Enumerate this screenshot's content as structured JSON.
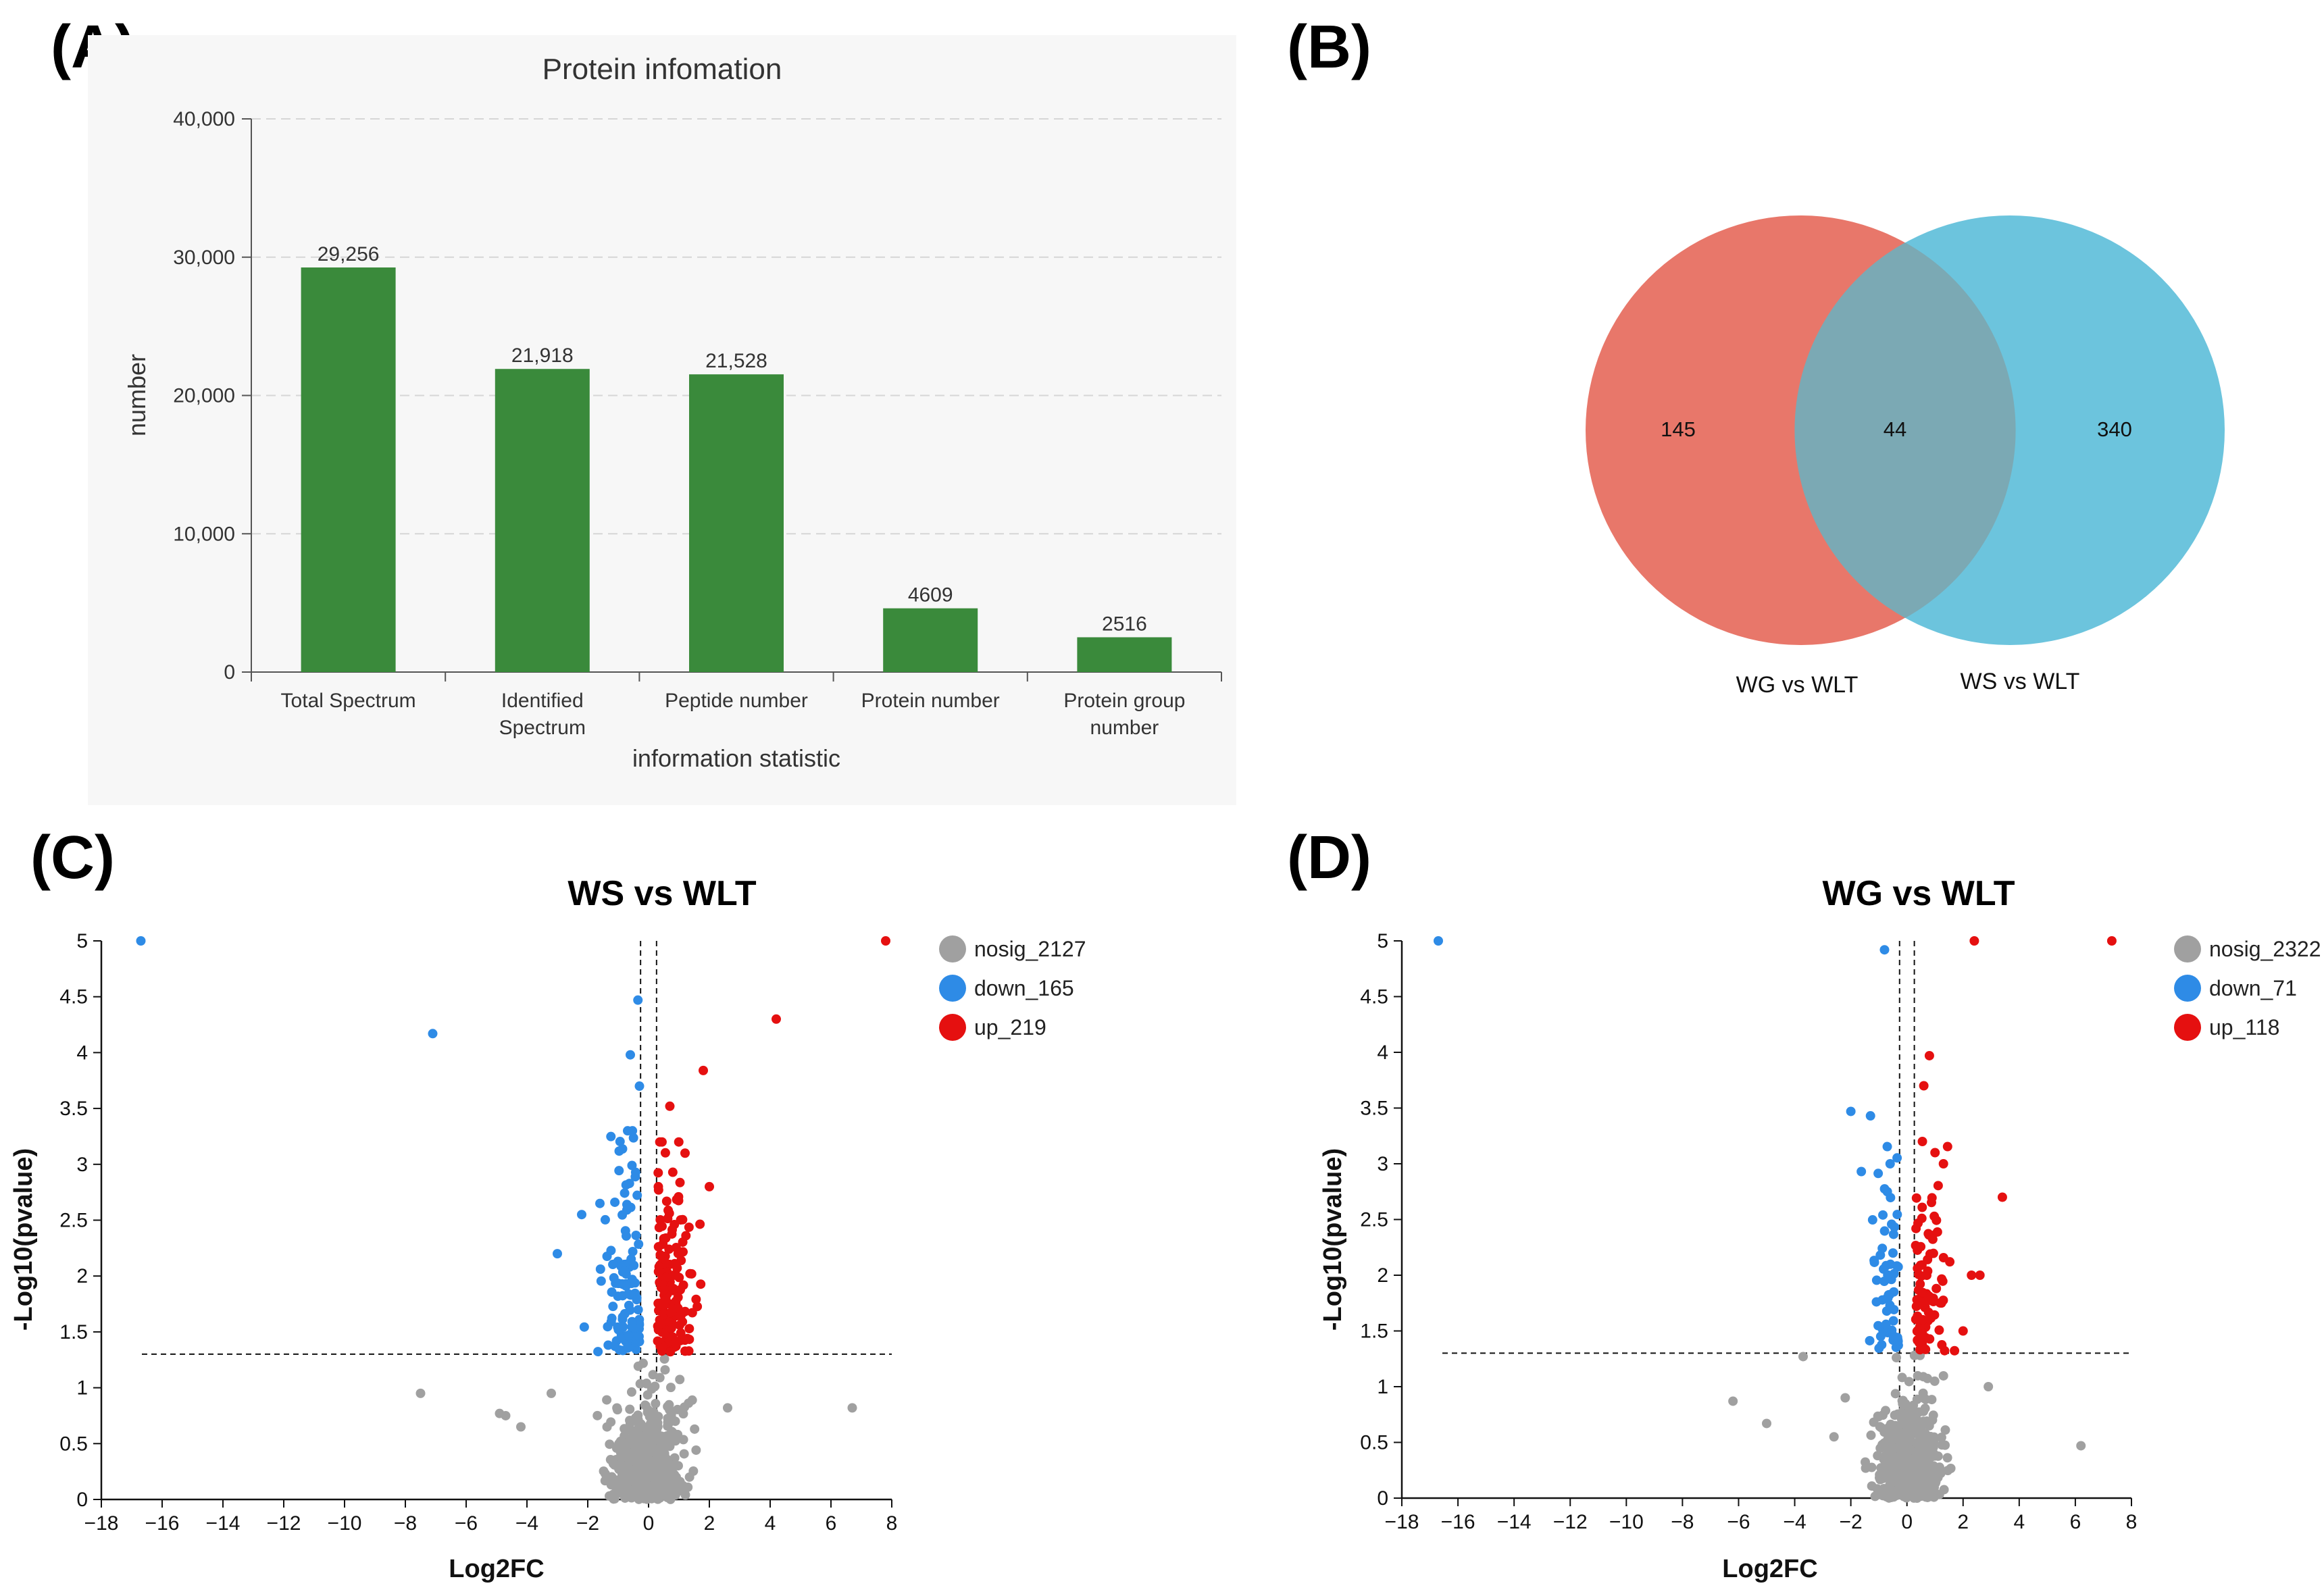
{
  "panel_labels": [
    "(A)",
    "(B)",
    "(C)",
    "(D)"
  ],
  "colors": {
    "bar": "#3a8a3b",
    "venn_left": "#e8776a",
    "venn_right": "#6cc4dd",
    "nosig": "#a0a0a0",
    "down": "#2e8be6",
    "up": "#e51010"
  },
  "chart_data": [
    {
      "id": "A",
      "type": "bar",
      "title": "Protein infomation",
      "xlabel": "information statistic",
      "ylabel": "number",
      "ylim": [
        0,
        40000
      ],
      "yticks": [
        0,
        10000,
        20000,
        30000,
        40000
      ],
      "ytick_labels": [
        "0",
        "10,000",
        "20,000",
        "30,000",
        "40,000"
      ],
      "categories": [
        [
          "Total Spectrum"
        ],
        [
          "Identified",
          "Spectrum"
        ],
        [
          "Peptide number"
        ],
        [
          "Protein number"
        ],
        [
          "Protein group",
          "number"
        ]
      ],
      "values": [
        29256,
        21918,
        21528,
        4609,
        2516
      ],
      "value_labels": [
        "29,256",
        "21,918",
        "21,528",
        "4609",
        "2516"
      ],
      "grid": true
    },
    {
      "id": "B",
      "type": "venn",
      "sets": [
        {
          "name": "WG vs WLT",
          "only": 145
        },
        {
          "name": "WS vs WLT",
          "only": 340
        }
      ],
      "intersection": 44,
      "labels": [
        "145",
        "44",
        "340"
      ]
    },
    {
      "id": "C",
      "type": "scatter",
      "title": "WS vs WLT",
      "xlabel": "Log2FC",
      "ylabel": "-Log10(pvalue)",
      "xlim": [
        -18,
        8
      ],
      "ylim": [
        0,
        5
      ],
      "xticks": [
        -18,
        -16,
        -14,
        -12,
        -10,
        -8,
        -6,
        -4,
        -2,
        0,
        2,
        4,
        6,
        8
      ],
      "yticks": [
        0,
        0.5,
        1,
        1.5,
        2,
        2.5,
        3,
        3.5,
        4,
        4.5,
        5
      ],
      "thresholds": {
        "x": [
          -0.263,
          0.263
        ],
        "y": 1.301
      },
      "legend": [
        "nosig_2127",
        "down_165",
        "up_219"
      ],
      "seed": 17,
      "counts": {
        "nosig": 520,
        "down": 110,
        "up": 150
      },
      "highlights": {
        "down": [
          [
            -16.7,
            5.0
          ],
          [
            -7.1,
            4.17
          ],
          [
            -0.35,
            4.47
          ],
          [
            -0.6,
            3.98
          ],
          [
            -0.3,
            3.7
          ],
          [
            -3.0,
            2.2
          ],
          [
            -2.2,
            2.55
          ],
          [
            -1.6,
            2.65
          ]
        ],
        "up": [
          [
            7.8,
            5.0
          ],
          [
            4.2,
            4.3
          ],
          [
            1.8,
            3.84
          ],
          [
            0.7,
            3.52
          ],
          [
            1.2,
            3.1
          ],
          [
            2.0,
            2.8
          ]
        ],
        "nosig": [
          [
            -7.5,
            0.95
          ],
          [
            6.7,
            0.82
          ],
          [
            -4.9,
            0.77
          ],
          [
            -4.7,
            0.75
          ],
          [
            -4.2,
            0.65
          ],
          [
            -3.2,
            0.95
          ],
          [
            2.6,
            0.82
          ]
        ]
      }
    },
    {
      "id": "D",
      "type": "scatter",
      "title": "WG vs WLT",
      "xlabel": "Log2FC",
      "ylabel": "-Log10(pvalue)",
      "xlim": [
        -18,
        8
      ],
      "ylim": [
        0,
        5
      ],
      "xticks": [
        -18,
        -16,
        -14,
        -12,
        -10,
        -8,
        -6,
        -4,
        -2,
        0,
        2,
        4,
        6,
        8
      ],
      "yticks": [
        0,
        0.5,
        1,
        1.5,
        2,
        2.5,
        3,
        3.5,
        4,
        4.5,
        5
      ],
      "thresholds": {
        "x": [
          -0.263,
          0.263
        ],
        "y": 1.301
      },
      "legend": [
        "nosig_2322",
        "down_71",
        "up_118"
      ],
      "seed": 29,
      "counts": {
        "nosig": 520,
        "down": 55,
        "up": 90
      },
      "highlights": {
        "down": [
          [
            -16.7,
            5.0
          ],
          [
            -0.8,
            4.92
          ],
          [
            -2.0,
            3.47
          ],
          [
            -1.3,
            3.43
          ],
          [
            -0.6,
            3.0
          ],
          [
            -0.7,
            2.75
          ]
        ],
        "up": [
          [
            7.3,
            5.0
          ],
          [
            2.4,
            5.0
          ],
          [
            0.8,
            3.97
          ],
          [
            0.6,
            3.7
          ],
          [
            3.4,
            2.7
          ],
          [
            1.0,
            3.1
          ],
          [
            2.6,
            2.0
          ],
          [
            2.3,
            2.0
          ],
          [
            2.0,
            1.5
          ],
          [
            1.3,
            3.0
          ]
        ],
        "nosig": [
          [
            -6.2,
            0.87
          ],
          [
            6.2,
            0.47
          ],
          [
            -3.7,
            1.27
          ],
          [
            -5.0,
            0.67
          ],
          [
            2.9,
            1.0
          ],
          [
            -2.2,
            0.9
          ],
          [
            -2.6,
            0.55
          ]
        ]
      }
    }
  ]
}
